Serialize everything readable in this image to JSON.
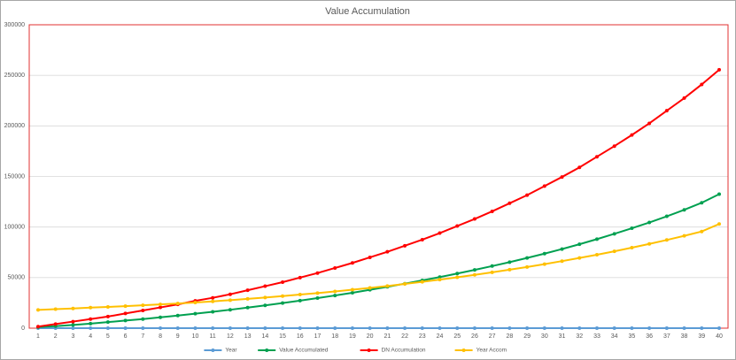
{
  "chart_data": {
    "type": "line",
    "title": "Value Accumulation",
    "categories": [
      1,
      2,
      3,
      4,
      5,
      6,
      7,
      8,
      9,
      10,
      11,
      12,
      13,
      14,
      15,
      16,
      17,
      18,
      19,
      20,
      21,
      22,
      23,
      24,
      25,
      26,
      27,
      28,
      29,
      30,
      31,
      32,
      33,
      34,
      35,
      36,
      37,
      38,
      39,
      40
    ],
    "series": [
      {
        "name": "Year",
        "color": "#5b9bd5",
        "values": [
          1,
          2,
          3,
          4,
          5,
          6,
          7,
          8,
          9,
          10,
          11,
          12,
          13,
          14,
          15,
          16,
          17,
          18,
          19,
          20,
          21,
          22,
          23,
          24,
          25,
          26,
          27,
          28,
          29,
          30,
          31,
          32,
          33,
          34,
          35,
          36,
          37,
          38,
          39,
          40
        ]
      },
      {
        "name": "Value Accumulated",
        "color": "#00a050",
        "values": [
          1000,
          2000,
          3200,
          4500,
          6000,
          7500,
          9000,
          10700,
          12500,
          14300,
          16200,
          18200,
          20300,
          22500,
          24800,
          27200,
          29700,
          32300,
          35000,
          37900,
          40900,
          44000,
          47200,
          50500,
          54000,
          57600,
          61400,
          65300,
          69400,
          73700,
          78200,
          83000,
          88000,
          93300,
          98800,
          104500,
          110600,
          117000,
          124000,
          132500
        ]
      },
      {
        "name": "DN Accumulation",
        "color": "#ff0000",
        "values": [
          1500,
          4000,
          6500,
          9000,
          11500,
          14500,
          17500,
          20500,
          23500,
          27000,
          30000,
          33500,
          37500,
          41500,
          45500,
          50000,
          54500,
          59500,
          64500,
          70000,
          75500,
          81500,
          87500,
          94000,
          101000,
          108000,
          115500,
          123500,
          131500,
          140500,
          149500,
          159000,
          169500,
          180000,
          191000,
          202500,
          215000,
          227500,
          241000,
          255500
        ]
      },
      {
        "name": "Year Accom",
        "color": "#ffc000",
        "values": [
          18000,
          18800,
          19500,
          20300,
          21000,
          21800,
          22600,
          23500,
          24400,
          25400,
          26500,
          27700,
          29000,
          30300,
          31700,
          33200,
          34700,
          36300,
          38000,
          39800,
          41700,
          43700,
          45800,
          48000,
          50300,
          52700,
          55200,
          57800,
          60500,
          63300,
          66300,
          69400,
          72600,
          76000,
          79600,
          83300,
          87200,
          91300,
          95600,
          103000
        ]
      }
    ],
    "ylim": [
      0,
      300000
    ],
    "yticks": [
      0,
      50000,
      100000,
      150000,
      200000,
      250000,
      300000
    ],
    "grid": true,
    "legend": "bottom"
  }
}
